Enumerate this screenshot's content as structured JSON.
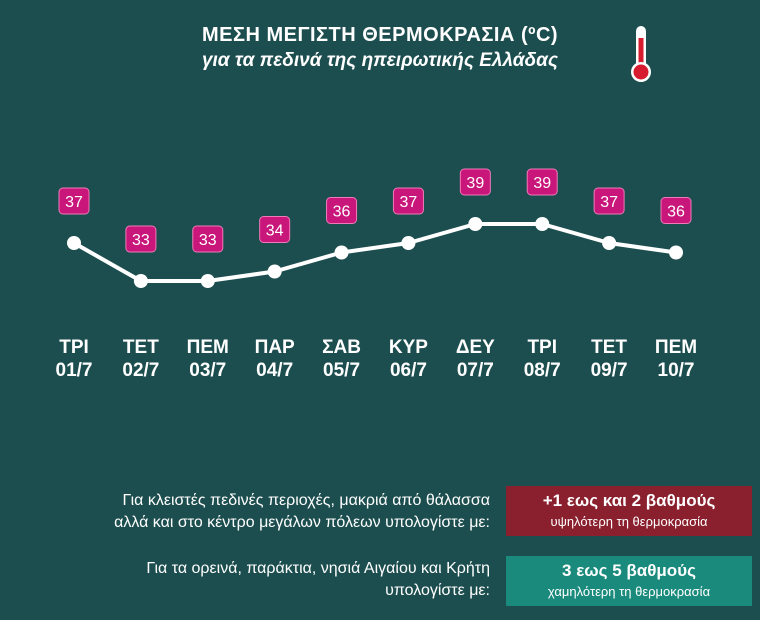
{
  "header": {
    "title": "ΜΕΣΗ ΜΕΓΙΣΤΗ ΘΕΡΜΟΚΡΑΣΙΑ (ºC)",
    "subtitle": "για τα πεδινά της ηπειρωτικής Ελλάδας",
    "icon": "thermometer-icon"
  },
  "colors": {
    "background": "#1d4e4f",
    "label_box": "#c8167a",
    "line": "#ffffff",
    "warmer_box": "#8a1f2e",
    "cooler_box": "#1a8a7c"
  },
  "chart_data": {
    "type": "line",
    "title": "ΜΕΣΗ ΜΕΓΙΣΤΗ ΘΕΡΜΟΚΡΑΣΙΑ (ºC)",
    "subtitle": "για τα πεδινά της ηπειρωτικής Ελλάδας",
    "days": [
      "ΤΡΙ",
      "ΤΕΤ",
      "ΠΕΜ",
      "ΠΑΡ",
      "ΣΑΒ",
      "ΚΥΡ",
      "ΔΕΥ",
      "ΤΡΙ",
      "ΤΕΤ",
      "ΠΕΜ"
    ],
    "categories": [
      "01/7",
      "02/7",
      "03/7",
      "04/7",
      "05/7",
      "06/7",
      "07/7",
      "08/7",
      "09/7",
      "10/7"
    ],
    "values": [
      37,
      33,
      33,
      34,
      36,
      37,
      39,
      39,
      37,
      36
    ],
    "grid": false,
    "axes_visible": false,
    "data_labels": true
  },
  "notes": [
    {
      "text_line1": "Για κλειστές πεδινές περιοχές, μακριά από θάλασσα",
      "text_line2": "αλλά και στο κέντρο μεγάλων πόλεων υπολογίστε με:",
      "box_big": "+1 εως και 2 βαθμούς",
      "box_small": "υψηλότερη τη θερμοκρασία"
    },
    {
      "text_line1": "Για τα ορεινά, παράκτια, νησιά Αιγαίου και Κρήτη",
      "text_line2": "υπολογίστε με:",
      "box_big": "3 εως 5 βαθμούς",
      "box_small": "χαμηλότερη τη θερμοκρασία"
    }
  ]
}
